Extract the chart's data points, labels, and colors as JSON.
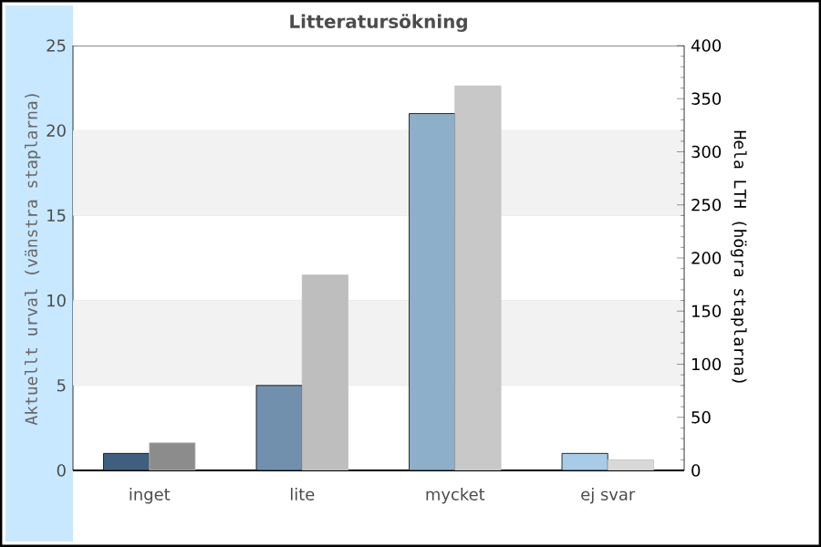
{
  "chart_data": {
    "type": "bar",
    "title": "Litteratursökning",
    "categories": [
      "inget",
      "lite",
      "mycket",
      "ej svar"
    ],
    "ylabel": "Aktuellt urval (vänstra staplarna)",
    "y2label": "Hela LTH (högra staplarna)",
    "ylim": [
      0,
      25
    ],
    "yticks": [
      0,
      5,
      10,
      15,
      20,
      25
    ],
    "y2lim": [
      0,
      400
    ],
    "y2ticks": [
      0,
      50,
      100,
      150,
      200,
      250,
      300,
      350,
      400
    ],
    "grid": "y",
    "bands": [
      {
        "axis": "y",
        "from": 5,
        "to": 10,
        "color": "#f2f2f2"
      },
      {
        "axis": "y",
        "from": 15,
        "to": 20,
        "color": "#f2f2f2"
      }
    ],
    "series": [
      {
        "colors": [
          "#3f5f7f",
          "#7090ae",
          "#8eafca",
          "#a8cbe8"
        ],
        "values": [
          1,
          5,
          21,
          1
        ]
      },
      {
        "axis": "y2",
        "colors": [
          "#8c8c8c",
          "#bebebe",
          "#c8c8c8",
          "#d8d8d8"
        ],
        "values": [
          26,
          184,
          362,
          10
        ]
      }
    ]
  }
}
